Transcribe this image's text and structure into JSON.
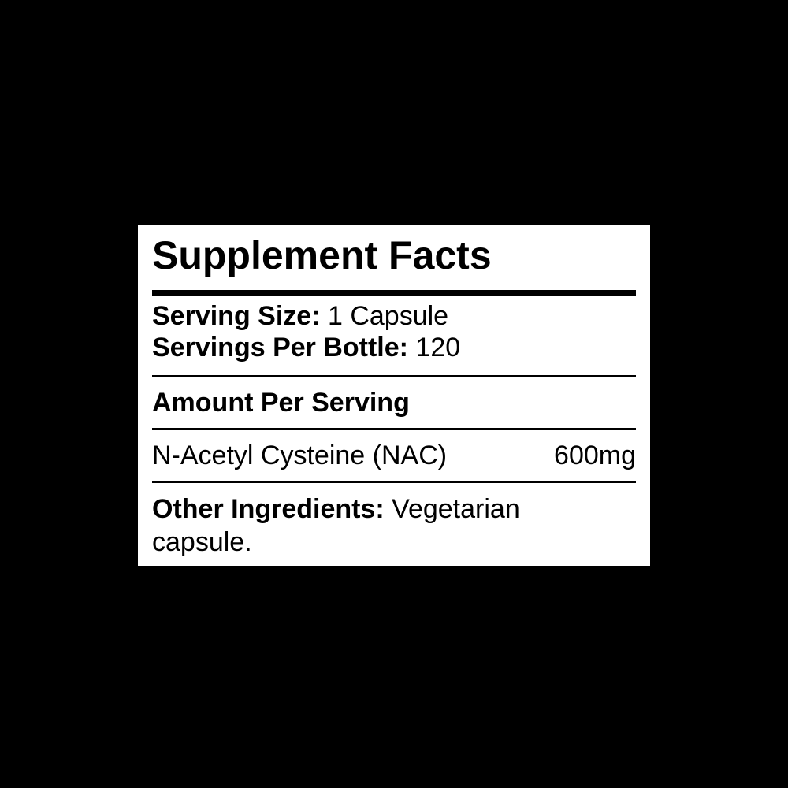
{
  "canvas": {
    "background_color": "#000000"
  },
  "label": {
    "colors": {
      "panel_bg": "#ffffff",
      "text": "#000000",
      "rule": "#000000"
    },
    "title": "Supplement Facts",
    "serving": {
      "size_label": "Serving Size:",
      "size_value": "1 Capsule",
      "per_bottle_label": "Servings Per Bottle:",
      "per_bottle_value": "120"
    },
    "amount_heading": "Amount Per Serving",
    "nutrients": [
      {
        "name": "N-Acetyl Cysteine (NAC)",
        "amount": "600mg"
      }
    ],
    "other_ingredients": {
      "label": "Other Ingredients:",
      "text": "Vegetarian capsule."
    }
  }
}
